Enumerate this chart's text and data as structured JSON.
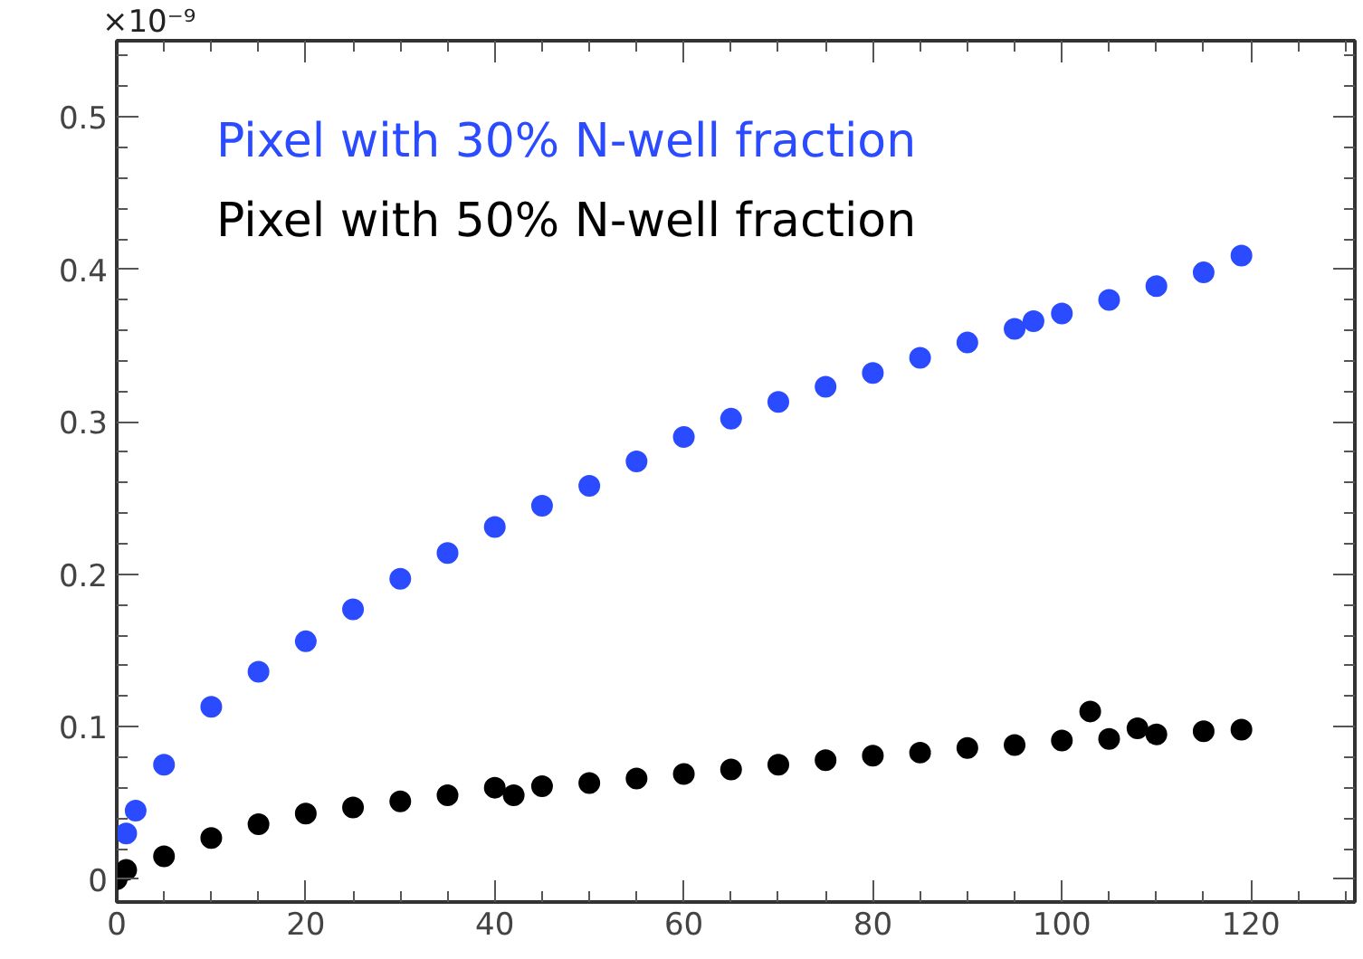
{
  "chart_data": {
    "type": "scatter",
    "marker": "circle",
    "grid": false,
    "legend": "top left",
    "annotations": [
      "×10⁻⁹"
    ],
    "xlim": [
      0,
      131
    ],
    "ylim": [
      -0.015,
      0.55
    ],
    "xticks": [
      0,
      20,
      40,
      60,
      80,
      100,
      120
    ],
    "yticks": [
      0,
      0.1,
      0.2,
      0.3,
      0.4,
      0.5
    ],
    "series": [
      {
        "name": "Pixel with 30% N-well fraction",
        "color": "#2a4bff",
        "x": [
          1,
          2,
          5,
          10,
          15,
          20,
          25,
          30,
          35,
          40,
          45,
          50,
          55,
          60,
          65,
          70,
          75,
          80,
          85,
          90,
          95,
          97,
          100,
          105,
          110,
          115,
          119
        ],
        "values": [
          0.03,
          0.045,
          0.075,
          0.113,
          0.136,
          0.156,
          0.177,
          0.197,
          0.214,
          0.231,
          0.245,
          0.258,
          0.274,
          0.29,
          0.302,
          0.313,
          0.323,
          0.332,
          0.342,
          0.352,
          0.361,
          0.366,
          0.371,
          0.38,
          0.389,
          0.398,
          0.409
        ]
      },
      {
        "name": "Pixel with 50% N-well fraction",
        "color": "#000000",
        "x": [
          0,
          1,
          5,
          10,
          15,
          20,
          25,
          30,
          35,
          40,
          42,
          45,
          50,
          55,
          60,
          65,
          70,
          75,
          80,
          85,
          90,
          95,
          100,
          103,
          105,
          108,
          110,
          115,
          119
        ],
        "values": [
          0,
          0.006,
          0.015,
          0.027,
          0.036,
          0.043,
          0.047,
          0.051,
          0.055,
          0.06,
          0.055,
          0.061,
          0.063,
          0.066,
          0.069,
          0.072,
          0.075,
          0.078,
          0.081,
          0.083,
          0.086,
          0.088,
          0.091,
          0.11,
          0.092,
          0.099,
          0.095,
          0.097,
          0.098
        ]
      }
    ]
  }
}
